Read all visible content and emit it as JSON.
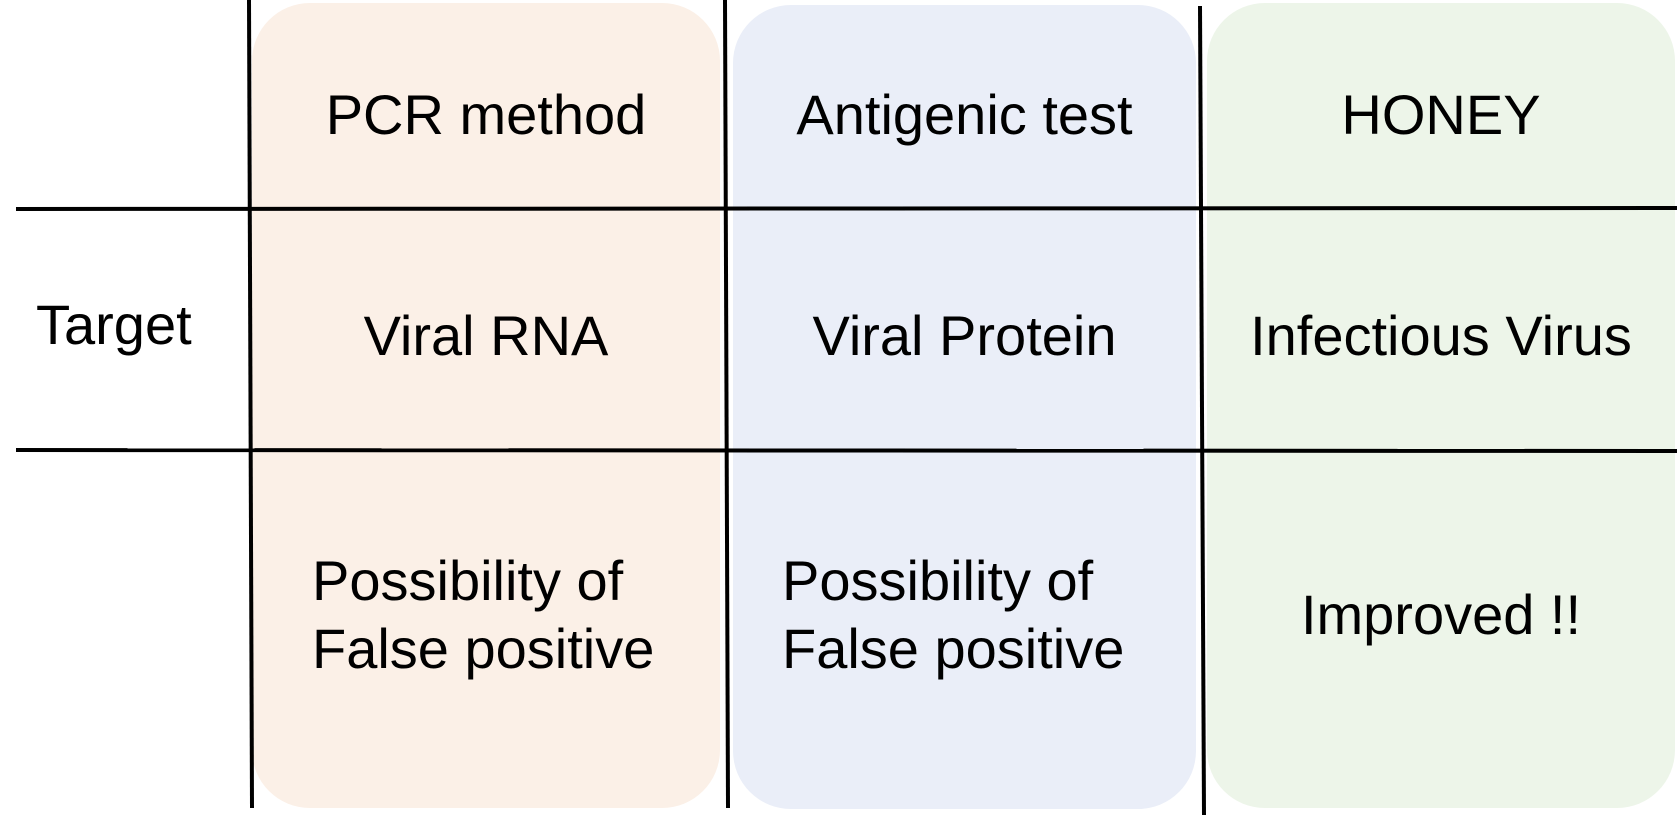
{
  "columns": [
    {
      "header": "PCR method",
      "target": "Viral RNA",
      "note": "Possibility of\nFalse positive",
      "color": "#fbf0e7"
    },
    {
      "header": "Antigenic test",
      "target": "Viral Protein",
      "note": "Possibility of\nFalse positive",
      "color": "#eaeef8"
    },
    {
      "header": "HONEY",
      "target": "Infectious Virus",
      "note": "Improved !!",
      "color": "#edf5e9"
    }
  ],
  "row_labels": {
    "header": "",
    "target": "Target",
    "note": ""
  }
}
